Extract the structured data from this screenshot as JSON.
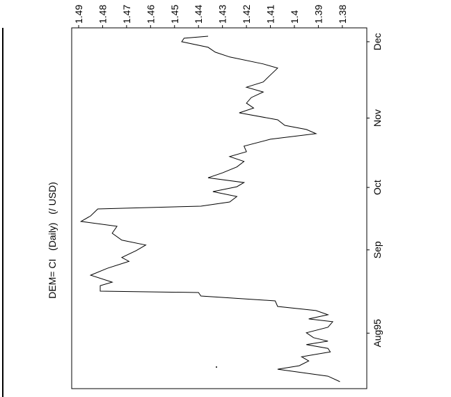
{
  "chart_data": {
    "type": "line",
    "title": "DEM= CI   (Daily)   (/ USD)",
    "orientation": "rotated-ccw",
    "color": "#000000",
    "x": [
      2.0,
      3.6,
      5.6,
      6.6,
      8.0,
      9.2,
      10.6,
      11.6,
      12.7,
      13.7,
      14.7,
      16.1,
      17.7,
      19.3,
      20.1,
      21.3,
      22.5,
      23.7,
      25.3,
      26.7,
      27.7,
      28.1,
      29.7,
      30.7,
      32.7,
      34.7,
      36.7,
      37.8,
      39.8,
      41.4,
      42.8,
      44.8,
      46.8,
      48.2,
      49.8,
      51.8,
      52.6,
      53.8,
      55.4,
      56.8,
      58.2,
      59.4,
      60.8,
      62.2,
      63.9,
      65.5,
      66.9,
      68.3,
      69.9,
      71.9,
      73.5,
      74.7,
      75.9,
      77.5,
      79.5,
      80.9,
      82.3,
      83.9,
      85.5,
      86.9,
      88.4,
      90.4,
      92.4,
      93.6,
      95.6,
      97.0,
      98.4,
      100.0,
      101.0,
      101.6
    ],
    "values": [
      1.381,
      1.386,
      1.407,
      1.398,
      1.394,
      1.397,
      1.385,
      1.386,
      1.395,
      1.386,
      1.392,
      1.395,
      1.386,
      1.384,
      1.394,
      1.386,
      1.391,
      1.407,
      1.408,
      1.439,
      1.44,
      1.481,
      1.481,
      1.476,
      1.485,
      1.478,
      1.469,
      1.472,
      1.466,
      1.462,
      1.472,
      1.476,
      1.474,
      1.489,
      1.485,
      1.482,
      1.439,
      1.427,
      1.424,
      1.434,
      1.424,
      1.421,
      1.436,
      1.43,
      1.424,
      1.421,
      1.427,
      1.42,
      1.421,
      1.41,
      1.391,
      1.395,
      1.404,
      1.407,
      1.423,
      1.417,
      1.42,
      1.418,
      1.413,
      1.42,
      1.413,
      1.41,
      1.407,
      1.413,
      1.427,
      1.433,
      1.436,
      1.447,
      1.446,
      1.436
    ],
    "xlim": [
      0,
      104
    ],
    "xticks": [
      {
        "value": 16,
        "label": "Aug95"
      },
      {
        "value": 40,
        "label": "Sep"
      },
      {
        "value": 58,
        "label": "Oct"
      },
      {
        "value": 78,
        "label": "Nov"
      },
      {
        "value": 100,
        "label": "Dec"
      }
    ],
    "ylim": [
      1.3698,
      1.4929
    ],
    "yticks": [
      1.38,
      1.39,
      1.4,
      1.41,
      1.42,
      1.43,
      1.44,
      1.45,
      1.46,
      1.47,
      1.48,
      1.49
    ]
  }
}
